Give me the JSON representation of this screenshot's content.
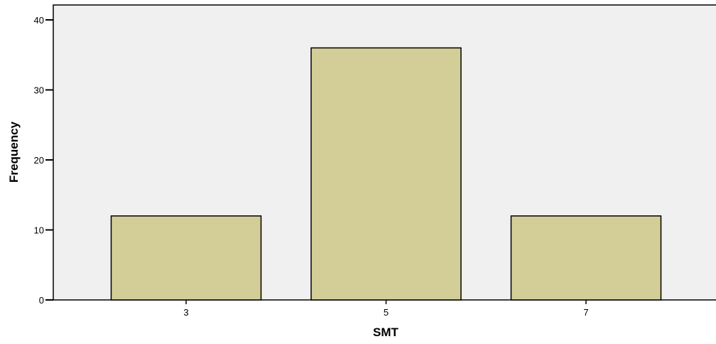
{
  "chart_data": {
    "type": "bar",
    "categories": [
      "3",
      "5",
      "7"
    ],
    "values": [
      12,
      36,
      12
    ],
    "xlabel": "SMT",
    "ylabel": "Frequency",
    "ylim": [
      0,
      42
    ],
    "yticks": [
      "0",
      "10",
      "20",
      "30",
      "40"
    ],
    "grid": false,
    "legend": "none"
  },
  "colors": {
    "plot_background": "#f0f0f0",
    "bar_fill": "#d3ce98",
    "bar_stroke": "#000000",
    "axis": "#000000"
  }
}
